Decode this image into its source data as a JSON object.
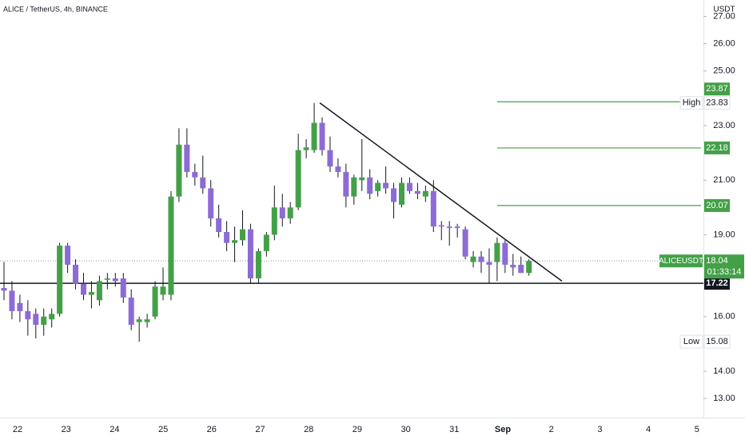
{
  "chart_data": {
    "type": "candlestick",
    "title": "ALICE / TetherUS, 4h, BINANCE",
    "unit": "USDT",
    "symbol": "ALICEUSDT",
    "countdown": "01:33:14",
    "up_color": "#43a047",
    "down_color": "#8c6bd6",
    "xtick_labels": [
      "22",
      "23",
      "24",
      "25",
      "26",
      "27",
      "28",
      "29",
      "30",
      "31",
      "Sep",
      "2",
      "3",
      "4",
      "5"
    ],
    "ylim": [
      12.3,
      27.6
    ],
    "yticks": [
      {
        "value": 27,
        "label": "27.00"
      },
      {
        "value": 26,
        "label": "26.00"
      },
      {
        "value": 25,
        "label": "25.00"
      },
      {
        "value": 23,
        "label": "23.00"
      },
      {
        "value": 21,
        "label": "21.00"
      },
      {
        "value": 19,
        "label": "19.00"
      },
      {
        "value": 16,
        "label": "16.00"
      },
      {
        "value": 14,
        "label": "14.00"
      },
      {
        "value": 13,
        "label": "13.00"
      }
    ],
    "open": [
      17.05,
      16.95,
      16.5,
      16.2,
      16.1,
      15.7,
      15.9,
      16.1,
      18.6,
      17.9,
      17.2,
      16.8,
      16.6,
      17.35,
      17.4,
      17.4,
      16.7,
      15.8,
      15.8,
      16.0,
      16.8,
      16.8,
      20.4,
      22.3,
      21.3,
      21.1,
      20.7,
      19.6,
      19.1,
      18.7,
      18.8,
      19.2,
      17.4,
      18.4,
      19.0,
      20.0,
      19.6,
      20.0,
      22.1,
      22.1,
      23.1,
      22.1,
      21.5,
      21.3,
      20.4,
      21.0,
      21.1,
      20.6,
      20.9,
      20.7,
      20.1,
      20.9,
      20.6,
      20.4,
      20.6,
      19.35,
      19.3,
      19.3,
      19.2,
      18.0,
      18.2,
      18.0,
      18.0,
      18.7,
      17.9,
      17.9,
      17.6
    ],
    "high": [
      18.0,
      17.3,
      16.8,
      16.6,
      16.3,
      16.3,
      16.3,
      18.7,
      18.7,
      18.1,
      17.6,
      17.3,
      17.5,
      17.6,
      17.6,
      17.6,
      17.0,
      16.0,
      16.1,
      17.3,
      17.8,
      20.6,
      22.9,
      22.9,
      21.6,
      21.9,
      21.0,
      20.1,
      19.5,
      19.3,
      19.9,
      19.4,
      18.5,
      19.1,
      20.8,
      20.5,
      20.2,
      22.7,
      22.5,
      23.83,
      23.3,
      22.6,
      21.8,
      21.6,
      21.2,
      22.5,
      21.4,
      21.0,
      21.5,
      20.9,
      21.1,
      21.1,
      20.9,
      20.8,
      21.0,
      19.5,
      19.5,
      19.4,
      19.3,
      18.4,
      18.4,
      18.5,
      18.9,
      18.8,
      18.3,
      18.2,
      18.1
    ],
    "low": [
      16.6,
      15.9,
      15.8,
      15.3,
      15.2,
      15.3,
      15.6,
      16.0,
      17.6,
      17.0,
      16.6,
      16.3,
      16.4,
      17.0,
      17.1,
      16.5,
      15.5,
      15.08,
      15.6,
      15.9,
      16.6,
      16.6,
      20.2,
      21.1,
      20.8,
      20.5,
      19.3,
      18.9,
      18.4,
      18.0,
      18.6,
      17.2,
      17.2,
      18.2,
      18.8,
      19.3,
      19.4,
      19.9,
      21.8,
      22.0,
      21.9,
      21.3,
      21.1,
      20.0,
      20.1,
      20.6,
      20.3,
      20.4,
      20.5,
      19.6,
      20.0,
      20.5,
      20.3,
      20.2,
      19.1,
      18.8,
      18.6,
      18.9,
      18.1,
      17.8,
      17.6,
      17.22,
      17.3,
      17.6,
      17.5,
      17.6,
      17.5
    ],
    "close": [
      16.95,
      16.2,
      16.2,
      15.9,
      15.7,
      16.0,
      16.1,
      18.6,
      17.9,
      17.2,
      16.8,
      16.9,
      17.3,
      17.4,
      17.3,
      16.7,
      15.7,
      15.9,
      15.9,
      17.1,
      17.1,
      20.4,
      22.3,
      21.3,
      21.1,
      20.7,
      19.6,
      19.1,
      18.7,
      18.8,
      19.2,
      17.4,
      18.4,
      19.0,
      20.0,
      19.6,
      20.0,
      22.1,
      22.2,
      23.1,
      22.1,
      21.5,
      21.3,
      20.4,
      21.1,
      21.1,
      20.5,
      20.9,
      20.7,
      20.2,
      20.9,
      20.6,
      20.5,
      20.6,
      19.3,
      19.3,
      19.25,
      19.25,
      18.2,
      18.2,
      18.0,
      17.9,
      18.7,
      17.9,
      17.8,
      17.6,
      18.04
    ],
    "levels": [
      {
        "value": 23.87,
        "color": "#43a047"
      },
      {
        "value": 22.18,
        "color": "#43a047"
      },
      {
        "value": 20.07,
        "color": "#43a047"
      }
    ],
    "support": 17.22,
    "last_price": 18.04,
    "high_label": "High",
    "high_value": 23.83,
    "low_label": "Low",
    "low_value": 15.08,
    "trendline": [
      23.83,
      17.3
    ]
  }
}
